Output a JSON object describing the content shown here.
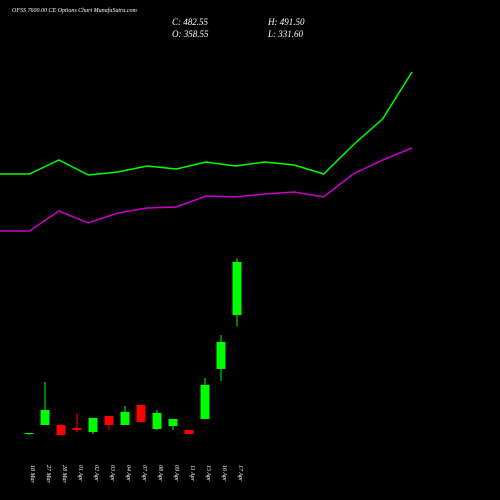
{
  "chart_data": [
    {
      "type": "line",
      "x": [
        0,
        1,
        2,
        3,
        4,
        5,
        6,
        7,
        8,
        9,
        10,
        11,
        12,
        13,
        14
      ],
      "xlim": [
        0,
        14
      ],
      "ylim": [
        0,
        100
      ],
      "series": [
        {
          "color": "#00ff00",
          "values": [
            30.4,
            30.4,
            36,
            30,
            31.2,
            33.6,
            32.4,
            35.2,
            33.6,
            35.2,
            34,
            30.4,
            42,
            52.4,
            71.2
          ]
        },
        {
          "color": "#cc00cc",
          "values": [
            7.6,
            7.6,
            15.6,
            10.8,
            14.8,
            16.8,
            17.2,
            21.6,
            21.2,
            22.4,
            23.2,
            21.2,
            30.4,
            36,
            40.8
          ]
        }
      ]
    },
    {
      "type": "candlestick",
      "title": "OFSS 7600.00 CE Options Chart MunafaSutra.com",
      "ohlc_labels": [
        "C: 482.55",
        "H: 491.50",
        "O: 358.55",
        "L: 331.60"
      ],
      "categories": [
        "18 Mar",
        "27 Mar",
        "28 Mar",
        "01 Apr",
        "02 Apr",
        "03 Apr",
        "04 Apr",
        "07 Apr",
        "08 Apr",
        "09 Apr",
        "11 Apr",
        "15 Apr",
        "16 Apr",
        "17 Apr"
      ],
      "open": [
        80.1,
        101.1,
        101.1,
        94.1,
        84.7,
        122.2,
        101.1,
        147.9,
        91.8,
        98.8,
        89.4,
        115.2,
        232.2,
        358.55
      ],
      "high": [
        82.4,
        201.8,
        103,
        129.2,
        117.5,
        122.2,
        145.6,
        147.9,
        136.2,
        115.2,
        89.4,
        211.1,
        311.7,
        491.5
      ],
      "low": [
        77.7,
        101.1,
        77.7,
        84.7,
        80.1,
        89.4,
        101.1,
        108.2,
        89.4,
        89.4,
        80.1,
        115.2,
        204.1,
        331.6
      ],
      "close": [
        82.4,
        136.2,
        77.7,
        89.4,
        117.5,
        101.1,
        131.6,
        108.2,
        129.2,
        115.2,
        80.1,
        194.7,
        295.4,
        482.55
      ],
      "up_color": "#00ff00",
      "down_color": "#ff0000",
      "ylim": [
        42.6,
        510.6
      ]
    }
  ]
}
